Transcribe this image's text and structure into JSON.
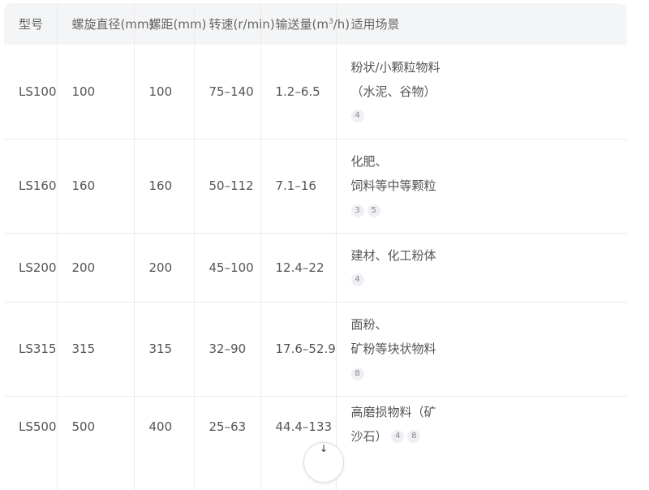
{
  "headers": [
    "型号",
    "螺旋直径(mm)",
    "螺距(mm)",
    "转速(r/min)",
    "输送量(m",
    "/h)",
    "适用场景"
  ],
  "header_sup": "3",
  "rows": [
    {
      "model": "LS100",
      "diameter": "100",
      "pitch": "100",
      "speed": "75–140",
      "capacity": "1.2–6.5",
      "scene": [
        "粉状/小颗粒物料",
        "（水泥、谷物）"
      ],
      "refs": [
        "4"
      ]
    },
    {
      "model": "LS160",
      "diameter": "160",
      "pitch": "160",
      "speed": "50–112",
      "capacity": "7.1–16",
      "scene": [
        "化肥、",
        "饲料等中等颗粒"
      ],
      "refs": [
        "3",
        "5"
      ]
    },
    {
      "model": "LS200",
      "diameter": "200",
      "pitch": "200",
      "speed": "45–100",
      "capacity": "12.4–22",
      "scene": [
        "建材、化工粉体"
      ],
      "refs": [
        "4"
      ]
    },
    {
      "model": "LS315",
      "diameter": "315",
      "pitch": "315",
      "speed": "32–90",
      "capacity": "17.6–52.9",
      "scene": [
        "面粉、",
        "矿粉等块状物料"
      ],
      "refs": [
        "8"
      ]
    },
    {
      "model": "LS500",
      "diameter": "500",
      "pitch": "400",
      "speed": "25–63",
      "capacity": "44.4–133",
      "scene": [
        "高磨损物料（矿",
        "沙石）"
      ],
      "refs": [
        "4",
        "8"
      ]
    }
  ],
  "scroll_icon": "arrow-down-icon"
}
